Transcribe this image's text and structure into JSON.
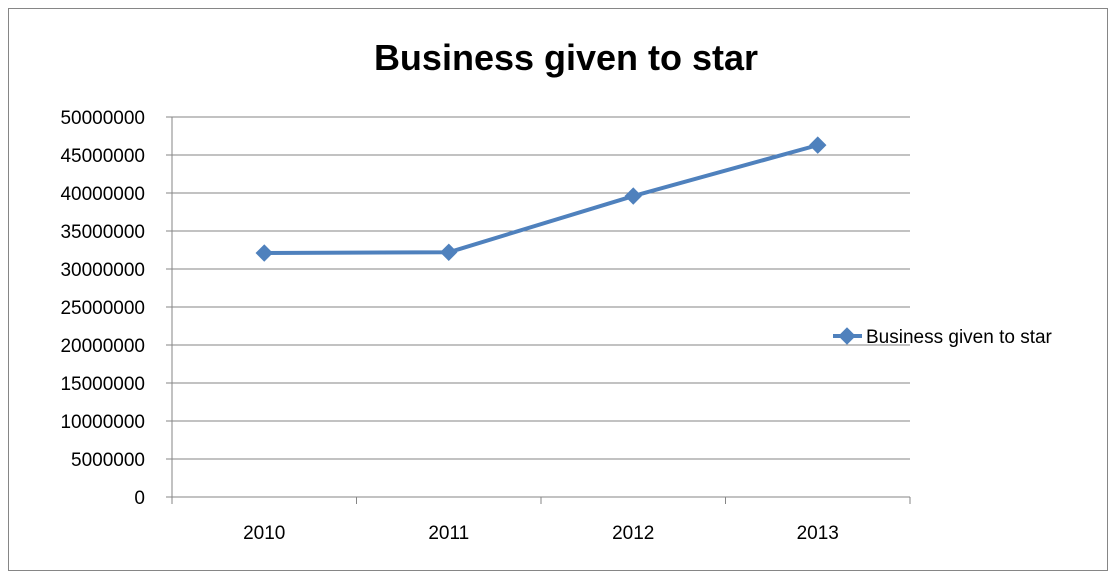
{
  "chart_data": {
    "type": "line",
    "title": "Business given to star",
    "categories": [
      "2010",
      "2011",
      "2012",
      "2013"
    ],
    "series": [
      {
        "name": "Business given to star",
        "values": [
          32100000,
          32200000,
          39600000,
          46300000
        ],
        "color": "#4F81BD",
        "marker": "diamond"
      }
    ],
    "ylim": [
      0,
      50000000
    ],
    "yticks": [
      "0",
      "5000000",
      "10000000",
      "15000000",
      "20000000",
      "25000000",
      "30000000",
      "35000000",
      "40000000",
      "45000000",
      "50000000"
    ],
    "grid": true,
    "legend": "right",
    "xlabel": "",
    "ylabel": ""
  }
}
